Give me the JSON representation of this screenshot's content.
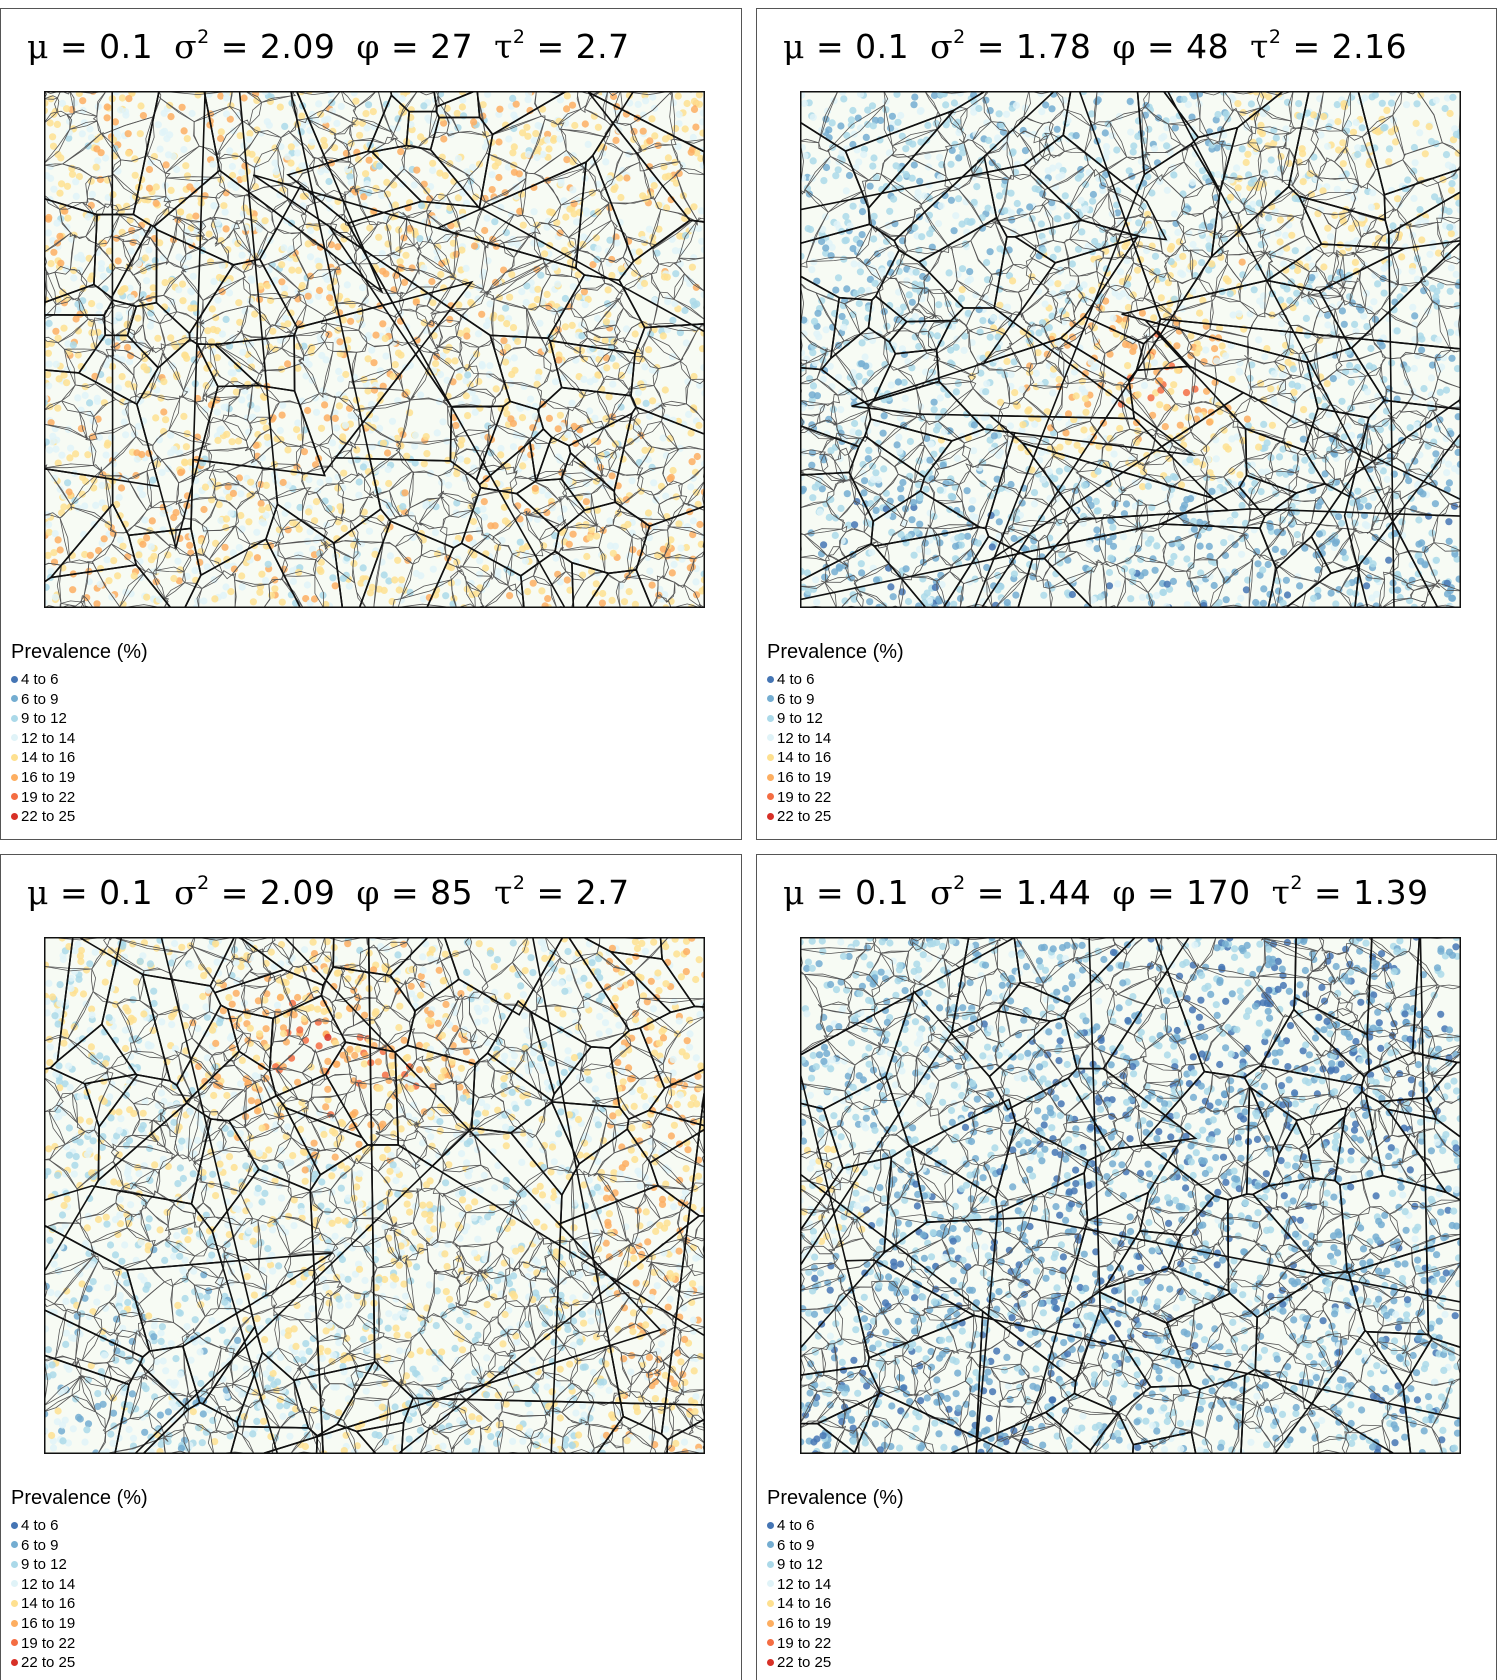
{
  "panels": [
    {
      "mu": "0.1",
      "sigma2": "2.09",
      "phi": "27",
      "tau2": "2.7",
      "theme": "mixed-warm",
      "hotspot": null
    },
    {
      "mu": "0.1",
      "sigma2": "1.78",
      "phi": "48",
      "tau2": "2.16",
      "theme": "cool-warm-center",
      "hotspot": "center"
    },
    {
      "mu": "0.1",
      "sigma2": "2.09",
      "phi": "85",
      "tau2": "2.7",
      "theme": "warm-upper-left",
      "hotspot": "upper-left"
    },
    {
      "mu": "0.1",
      "sigma2": "1.44",
      "phi": "170",
      "tau2": "1.39",
      "theme": "cool",
      "hotspot": null
    }
  ],
  "symbols": {
    "mu": "μ",
    "sigma": "σ",
    "phi": "φ",
    "tau": "τ",
    "eq": "=",
    "sq": "2"
  },
  "legend": {
    "title": "Prevalence (%)",
    "classes": [
      {
        "label": "4 to 6",
        "color": "#4575b4"
      },
      {
        "label": "6 to 9",
        "color": "#74add1"
      },
      {
        "label": "9 to 12",
        "color": "#abd9e9"
      },
      {
        "label": "12 to 14",
        "color": "#e0f3f8"
      },
      {
        "label": "14 to 16",
        "color": "#fee090"
      },
      {
        "label": "16 to 19",
        "color": "#fdae61"
      },
      {
        "label": "19 to 22",
        "color": "#f46d43"
      },
      {
        "label": "22 to 25",
        "color": "#d73027"
      }
    ]
  }
}
